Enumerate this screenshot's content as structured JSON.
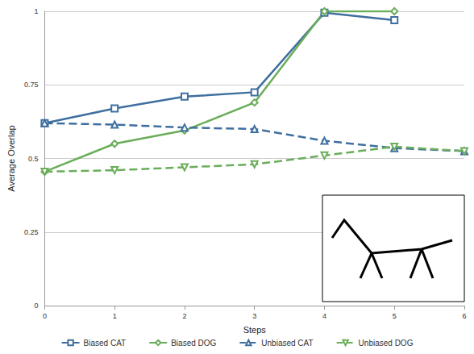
{
  "chart_data": {
    "type": "line",
    "x_label": "Steps",
    "y_label": "Average Overlap",
    "x": [
      0,
      1,
      2,
      3,
      4,
      5,
      6
    ],
    "xlim": [
      0,
      6
    ],
    "xticks": [
      0,
      1,
      2,
      3,
      4,
      5,
      6
    ],
    "ylim": [
      0,
      1
    ],
    "yticks": [
      0,
      0.25,
      0.5,
      0.75,
      1
    ],
    "grid": true,
    "legend": "bottom",
    "series": [
      {
        "name": "Biased CAT",
        "color": "#3f6f9f",
        "marker": "square",
        "line_style": "solid",
        "values": [
          0.62,
          0.67,
          0.71,
          0.725,
          0.995,
          0.97,
          null
        ]
      },
      {
        "name": "Biased DOG",
        "color": "#6aad5a",
        "marker": "diamond",
        "line_style": "solid",
        "values": [
          0.455,
          0.55,
          0.595,
          0.69,
          1.0,
          1.0,
          null
        ]
      },
      {
        "name": "Unbiased CAT",
        "color": "#3f6f9f",
        "marker": "triangle",
        "line_style": "dashed",
        "values": [
          0.62,
          0.615,
          0.605,
          0.6,
          0.56,
          0.535,
          0.525
        ]
      },
      {
        "name": "Unbiased DOG",
        "color": "#6aad5a",
        "marker": "triangle-down",
        "line_style": "dashed",
        "values": [
          0.455,
          0.46,
          0.47,
          0.48,
          0.51,
          0.54,
          0.525
        ]
      }
    ]
  }
}
